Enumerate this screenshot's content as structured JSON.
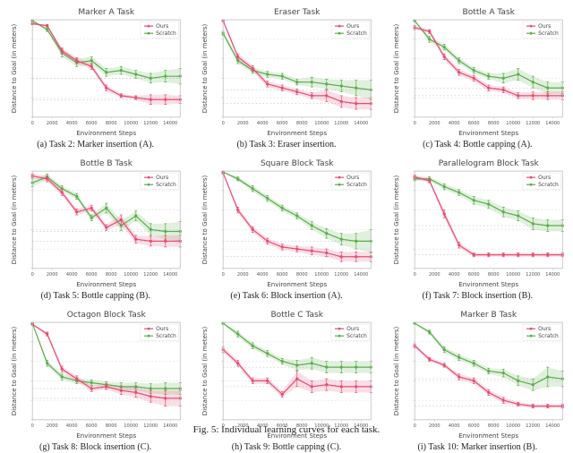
{
  "figure_caption": "Fig. 5: Individual learning curves for each task.",
  "xlabel": "Environment Steps",
  "ylabel": "Distance to Goal (in meters)",
  "legend": {
    "ours": "Ours",
    "scratch": "Scratch"
  },
  "colors": {
    "ours": "#e84c72",
    "scratch": "#5aae4a",
    "ours_band": "rgba(232,76,114,0.18)",
    "scratch_band": "rgba(90,174,74,0.18)",
    "grid": "#d8d8d8",
    "frame": "#bfbfbf",
    "guide": "#b0b0b0",
    "bg": "#ffffff"
  },
  "x_ticks": [
    0,
    2000,
    4000,
    6000,
    8000,
    10000,
    12000,
    14000
  ],
  "x_tick_labels": [
    "0",
    "2000",
    "4000",
    "6000",
    "8000",
    "10000",
    "12000",
    "14000"
  ],
  "xlim": [
    0,
    15000
  ],
  "y_meta": {
    "ticks_count": 6,
    "ylim_rel": [
      0,
      1
    ]
  },
  "plots": [
    {
      "title": "Marker A Task",
      "caption": "(a) Task 2: Marker insertion (A).",
      "ours": [
        0.96,
        0.94,
        0.68,
        0.58,
        0.52,
        0.3,
        0.22,
        0.2,
        0.18,
        0.18,
        0.18
      ],
      "scratch": [
        0.99,
        0.9,
        0.66,
        0.56,
        0.58,
        0.46,
        0.48,
        0.44,
        0.4,
        0.42,
        0.42
      ],
      "ours_err": [
        0.01,
        0.01,
        0.03,
        0.03,
        0.03,
        0.03,
        0.02,
        0.02,
        0.05,
        0.05,
        0.04
      ],
      "scratch_err": [
        0.005,
        0.02,
        0.04,
        0.04,
        0.04,
        0.04,
        0.04,
        0.04,
        0.05,
        0.06,
        0.08
      ],
      "hlines": [
        0.18,
        0.4
      ]
    },
    {
      "title": "Eraser Task",
      "caption": "(b) Task 3: Eraser insertion.",
      "ours": [
        0.99,
        0.62,
        0.5,
        0.34,
        0.3,
        0.26,
        0.22,
        0.22,
        0.16,
        0.14,
        0.14
      ],
      "scratch": [
        0.86,
        0.58,
        0.48,
        0.44,
        0.42,
        0.36,
        0.36,
        0.34,
        0.32,
        0.3,
        0.28
      ],
      "ours_err": [
        0.005,
        0.03,
        0.03,
        0.03,
        0.03,
        0.03,
        0.03,
        0.06,
        0.06,
        0.06,
        0.06
      ],
      "scratch_err": [
        0.02,
        0.03,
        0.03,
        0.03,
        0.03,
        0.03,
        0.05,
        0.05,
        0.06,
        0.08,
        0.1
      ],
      "hlines": [
        0.14,
        0.28
      ]
    },
    {
      "title": "Bottle A Task",
      "caption": "(c) Task 4: Bottle capping (A).",
      "ours": [
        0.92,
        0.88,
        0.62,
        0.46,
        0.4,
        0.3,
        0.28,
        0.22,
        0.22,
        0.22,
        0.22
      ],
      "scratch": [
        0.99,
        0.8,
        0.72,
        0.58,
        0.48,
        0.42,
        0.4,
        0.44,
        0.36,
        0.3,
        0.3
      ],
      "ours_err": [
        0.02,
        0.02,
        0.03,
        0.03,
        0.03,
        0.03,
        0.03,
        0.03,
        0.04,
        0.04,
        0.04
      ],
      "scratch_err": [
        0.005,
        0.03,
        0.03,
        0.03,
        0.03,
        0.03,
        0.05,
        0.06,
        0.06,
        0.06,
        0.06
      ],
      "hlines": [
        0.22,
        0.3
      ]
    },
    {
      "title": "Bottle B Task",
      "caption": "(d) Task 5: Bottle capping (B).",
      "ours": [
        0.95,
        0.92,
        0.78,
        0.58,
        0.62,
        0.42,
        0.5,
        0.3,
        0.28,
        0.28,
        0.28
      ],
      "scratch": [
        0.88,
        0.94,
        0.82,
        0.74,
        0.52,
        0.62,
        0.44,
        0.54,
        0.4,
        0.38,
        0.38
      ],
      "ours_err": [
        0.02,
        0.03,
        0.03,
        0.03,
        0.03,
        0.03,
        0.05,
        0.04,
        0.05,
        0.06,
        0.06
      ],
      "scratch_err": [
        0.04,
        0.03,
        0.03,
        0.03,
        0.03,
        0.05,
        0.05,
        0.05,
        0.06,
        0.08,
        0.1
      ],
      "hlines": [
        0.28,
        0.38
      ]
    },
    {
      "title": "Square Block Task",
      "caption": "(e) Task 6: Block insertion (A).",
      "ours": [
        0.98,
        0.6,
        0.4,
        0.28,
        0.22,
        0.2,
        0.18,
        0.16,
        0.12,
        0.12,
        0.12
      ],
      "scratch": [
        0.99,
        0.92,
        0.82,
        0.72,
        0.62,
        0.54,
        0.44,
        0.36,
        0.3,
        0.28,
        0.28
      ],
      "ours_err": [
        0.005,
        0.03,
        0.03,
        0.03,
        0.03,
        0.03,
        0.04,
        0.04,
        0.05,
        0.05,
        0.05
      ],
      "scratch_err": [
        0.005,
        0.02,
        0.03,
        0.03,
        0.03,
        0.03,
        0.04,
        0.05,
        0.06,
        0.08,
        0.12
      ],
      "hlines": [
        0.12,
        0.28
      ]
    },
    {
      "title": "Parallelogram Block Task",
      "caption": "(f) Task 7: Block insertion (B).",
      "ours": [
        0.94,
        0.9,
        0.56,
        0.24,
        0.14,
        0.14,
        0.14,
        0.14,
        0.14,
        0.14,
        0.14
      ],
      "scratch": [
        0.92,
        0.92,
        0.84,
        0.78,
        0.7,
        0.66,
        0.58,
        0.54,
        0.46,
        0.44,
        0.44
      ],
      "ours_err": [
        0.02,
        0.02,
        0.04,
        0.03,
        0.02,
        0.02,
        0.02,
        0.02,
        0.02,
        0.02,
        0.02
      ],
      "scratch_err": [
        0.02,
        0.02,
        0.03,
        0.03,
        0.04,
        0.04,
        0.05,
        0.05,
        0.06,
        0.06,
        0.06
      ],
      "hlines": [
        0.14,
        0.44
      ]
    },
    {
      "title": "Octagon Block Task",
      "caption": "(g) Task 8: Block insertion (C).",
      "ours": [
        0.98,
        0.88,
        0.52,
        0.42,
        0.32,
        0.34,
        0.3,
        0.28,
        0.24,
        0.22,
        0.22
      ],
      "scratch": [
        0.99,
        0.58,
        0.44,
        0.4,
        0.38,
        0.36,
        0.34,
        0.34,
        0.32,
        0.32,
        0.32
      ],
      "ours_err": [
        0.005,
        0.02,
        0.03,
        0.03,
        0.03,
        0.03,
        0.04,
        0.05,
        0.06,
        0.08,
        0.08
      ],
      "scratch_err": [
        0.005,
        0.03,
        0.03,
        0.03,
        0.03,
        0.03,
        0.04,
        0.04,
        0.05,
        0.06,
        0.06
      ],
      "hlines": [
        0.22,
        0.32
      ]
    },
    {
      "title": "Bottle C Task",
      "caption": "(h) Task 9: Bottle capping (C).",
      "ours": [
        0.72,
        0.58,
        0.4,
        0.4,
        0.26,
        0.42,
        0.34,
        0.36,
        0.34,
        0.34,
        0.34
      ],
      "scratch": [
        0.99,
        0.88,
        0.76,
        0.68,
        0.6,
        0.56,
        0.58,
        0.54,
        0.54,
        0.54,
        0.54
      ],
      "ours_err": [
        0.03,
        0.03,
        0.03,
        0.03,
        0.03,
        0.08,
        0.06,
        0.06,
        0.06,
        0.06,
        0.06
      ],
      "scratch_err": [
        0.005,
        0.03,
        0.03,
        0.03,
        0.03,
        0.05,
        0.06,
        0.06,
        0.06,
        0.06,
        0.06
      ],
      "hlines": [
        0.34,
        0.54
      ]
    },
    {
      "title": "Marker B Task",
      "caption": "(i) Task 10: Marker insertion (B).",
      "ours": [
        0.76,
        0.62,
        0.56,
        0.44,
        0.4,
        0.28,
        0.2,
        0.16,
        0.14,
        0.14,
        0.14
      ],
      "scratch": [
        0.99,
        0.9,
        0.72,
        0.64,
        0.58,
        0.5,
        0.48,
        0.4,
        0.36,
        0.44,
        0.42
      ],
      "ours_err": [
        0.02,
        0.02,
        0.02,
        0.03,
        0.03,
        0.03,
        0.03,
        0.02,
        0.02,
        0.02,
        0.02
      ],
      "scratch_err": [
        0.005,
        0.02,
        0.03,
        0.03,
        0.03,
        0.03,
        0.04,
        0.05,
        0.06,
        0.1,
        0.08
      ],
      "hlines": [
        0.14,
        0.42
      ]
    }
  ]
}
